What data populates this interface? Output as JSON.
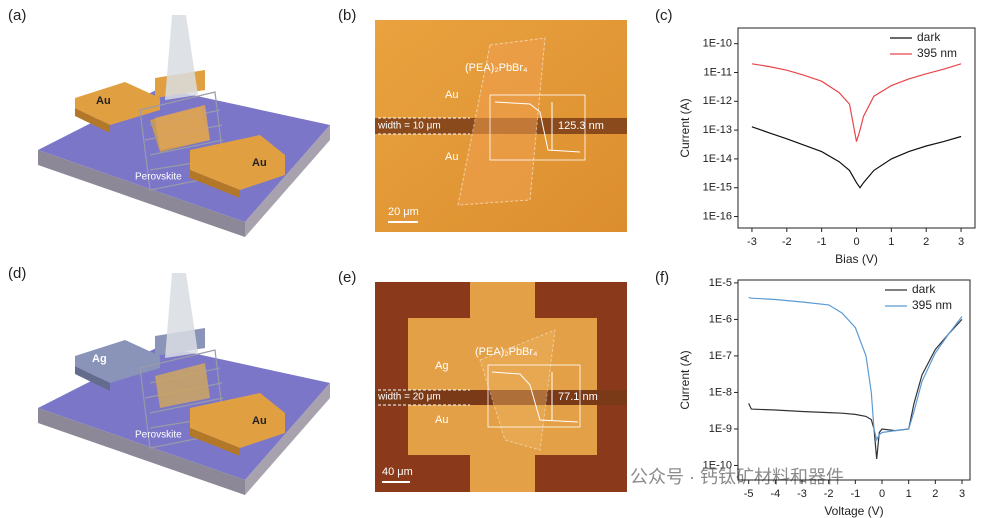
{
  "schematic_a": {
    "label": "(a)",
    "electrode_left": "Au",
    "electrode_right": "Au",
    "material": "Perovskite"
  },
  "micrograph_b": {
    "label": "(b)",
    "material": "(PEA)₂PbBr₄",
    "width": "width = 10 μm",
    "top_electrode": "Au",
    "bottom_electrode": "Au",
    "thickness": "125.3 nm",
    "scale_bar": "20 μm"
  },
  "schematic_d": {
    "label": "(d)",
    "electrode_left": "Ag",
    "electrode_right": "Au",
    "material": "Perovskite"
  },
  "micrograph_e": {
    "label": "(e)",
    "material": "(PEA)₂PbBr₄",
    "width": "width = 20 μm",
    "top_electrode": "Ag",
    "bottom_electrode": "Au",
    "thickness": "77.1 nm",
    "scale_bar": "40 μm"
  },
  "watermark": "公众号 · 钙钛矿材料和器件",
  "chart_data": [
    {
      "type": "line",
      "panel_label": "(c)",
      "x_label": "Bias (V)",
      "y_label": "Current (A)",
      "y_scale": "log",
      "legend": "upper right",
      "xlim": [
        -3.4,
        3.4
      ],
      "xticks": [
        -3,
        -2,
        -1,
        0,
        1,
        2,
        3
      ],
      "ylim": [
        4e-17,
        3.5e-10
      ],
      "yticks": [
        {
          "value": 1e-10,
          "label": "1E-10"
        },
        {
          "value": 1e-11,
          "label": "1E-11"
        },
        {
          "value": 1e-12,
          "label": "1E-12"
        },
        {
          "value": 1e-13,
          "label": "1E-13"
        },
        {
          "value": 1e-14,
          "label": "1E-14"
        },
        {
          "value": 1e-15,
          "label": "1E-15"
        },
        {
          "value": 1e-16,
          "label": "1E-16"
        }
      ],
      "x": [
        -3,
        -2.5,
        -2,
        -1.5,
        -1,
        -0.5,
        -0.2,
        0,
        0.1,
        0.2,
        0.5,
        1,
        1.5,
        2,
        2.5,
        3
      ],
      "series": [
        {
          "name": "dark",
          "color": "#111111",
          "values": [
            1.3e-13,
            8e-14,
            5e-14,
            3e-14,
            1.8e-14,
            8e-15,
            4e-15,
            1.5e-15,
            1e-15,
            1.5e-15,
            4e-15,
            1e-14,
            1.8e-14,
            2.8e-14,
            4e-14,
            6e-14
          ]
        },
        {
          "name": "395 nm",
          "color": "#e8464b",
          "values": [
            2e-11,
            1.6e-11,
            1.2e-11,
            8e-12,
            5e-12,
            2e-12,
            8e-13,
            4e-14,
            1e-13,
            3e-13,
            1.5e-12,
            3.5e-12,
            6e-12,
            9e-12,
            1.3e-11,
            2e-11
          ]
        }
      ]
    },
    {
      "type": "line",
      "panel_label": "(f)",
      "x_label": "Voltage (V)",
      "y_label": "Current (A)",
      "y_scale": "log",
      "legend": "upper right",
      "xlim": [
        -5.4,
        3.3
      ],
      "xticks": [
        -5,
        -4,
        -3,
        -2,
        -1,
        0,
        1,
        2,
        3
      ],
      "ylim": [
        4e-11,
        1.2e-05
      ],
      "yticks": [
        {
          "value": 1e-05,
          "label": "1E-5"
        },
        {
          "value": 1e-06,
          "label": "1E-6"
        },
        {
          "value": 1e-07,
          "label": "1E-7"
        },
        {
          "value": 1e-08,
          "label": "1E-8"
        },
        {
          "value": 1e-09,
          "label": "1E-9"
        },
        {
          "value": 1e-10,
          "label": "1E-10"
        }
      ],
      "x": [
        -5,
        -4.9,
        -4,
        -3,
        -2,
        -1.5,
        -1,
        -0.6,
        -0.4,
        -0.3,
        -0.2,
        -0.1,
        0,
        0.5,
        1,
        1.2,
        1.5,
        2,
        2.5,
        3
      ],
      "series": [
        {
          "name": "dark",
          "color": "#333333",
          "values": [
            5e-09,
            3.5e-09,
            3.3e-09,
            3e-09,
            2.8e-09,
            2.7e-09,
            2.5e-09,
            2.2e-09,
            1.8e-09,
            1e-09,
            1.5e-10,
            8e-10,
            1e-09,
            9e-10,
            1e-09,
            5e-09,
            3e-08,
            1.5e-07,
            4e-07,
            1e-06
          ]
        },
        {
          "name": "395 nm",
          "color": "#5b9bd5",
          "values": [
            4e-06,
            3.8e-06,
            3.5e-06,
            3e-06,
            2.5e-06,
            1.5e-06,
            6e-07,
            1e-07,
            1e-08,
            1e-09,
            5e-10,
            7e-10,
            8e-10,
            9e-10,
            1e-09,
            3e-09,
            2e-08,
            1.2e-07,
            4e-07,
            1.2e-06
          ]
        }
      ]
    }
  ]
}
